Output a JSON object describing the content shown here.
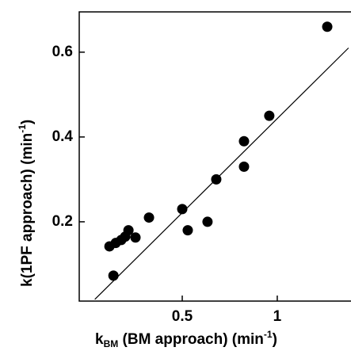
{
  "chart_data": {
    "type": "scatter",
    "xlabel": {
      "main": "k",
      "sub": "BM",
      "rest": " (BM approach) (min",
      "sup": "-1",
      "end": ")"
    },
    "ylabel": {
      "main": "k(1PF approach) (min",
      "sup": "-1",
      "end": ")"
    },
    "x": [
      0.138,
      0.117,
      0.15,
      0.179,
      0.2,
      0.217,
      0.254,
      0.325,
      0.5,
      0.529,
      0.633,
      0.679,
      0.825,
      0.825,
      0.958,
      1.263
    ],
    "values": [
      0.073,
      0.142,
      0.15,
      0.157,
      0.165,
      0.18,
      0.163,
      0.21,
      0.23,
      0.18,
      0.2,
      0.3,
      0.39,
      0.33,
      0.45,
      0.66
    ],
    "color": "#000000",
    "fit_line": {
      "x": [
        0.04,
        1.375
      ],
      "y": [
        0.017,
        0.61
      ]
    },
    "xlim": [
      -0.042,
      1.388
    ],
    "ylim": [
      0.013,
      0.695
    ],
    "xticks": [
      0.5,
      1
    ],
    "yticks": [
      0.2,
      0.4,
      0.6
    ]
  }
}
